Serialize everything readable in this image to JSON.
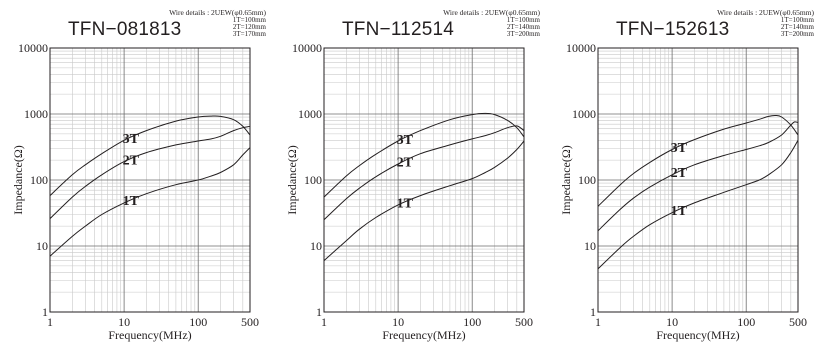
{
  "chart_data": [
    {
      "type": "line",
      "title": "TFN−081813",
      "wire_details": {
        "title": "Wire details : 2UEW(φ0.65mm)",
        "lengths": [
          "1T=100mm",
          "2T=120mm",
          "3T=170mm"
        ]
      },
      "xlabel": "Frequency(MHz)",
      "ylabel": "Impedance(Ω)",
      "x_scale": "log",
      "y_scale": "log",
      "xlim": [
        1,
        500
      ],
      "ylim": [
        1,
        10000
      ],
      "xticks": [
        "1",
        "10",
        "100",
        "500"
      ],
      "yticks": [
        "1",
        "10",
        "100",
        "1000",
        "10000"
      ],
      "grid": true,
      "series": [
        {
          "name": "3T",
          "x": [
            1,
            2,
            3,
            5,
            10,
            20,
            50,
            100,
            150,
            200,
            300,
            400,
            500
          ],
          "y": [
            58,
            120,
            170,
            250,
            400,
            560,
            780,
            900,
            930,
            920,
            820,
            650,
            480
          ]
        },
        {
          "name": "2T",
          "x": [
            1,
            2,
            3,
            5,
            10,
            20,
            50,
            100,
            150,
            200,
            300,
            400,
            500
          ],
          "y": [
            26,
            55,
            80,
            120,
            190,
            260,
            340,
            390,
            420,
            460,
            560,
            620,
            650
          ]
        },
        {
          "name": "1T",
          "x": [
            1,
            2,
            3,
            5,
            10,
            20,
            50,
            100,
            150,
            200,
            300,
            400,
            500
          ],
          "y": [
            7,
            14,
            20,
            30,
            45,
            62,
            85,
            100,
            115,
            130,
            170,
            240,
            310
          ]
        }
      ]
    },
    {
      "type": "line",
      "title": "TFN−112514",
      "wire_details": {
        "title": "Wire details : 2UEW(φ0.65mm)",
        "lengths": [
          "1T=100mm",
          "2T=140mm",
          "3T=200mm"
        ]
      },
      "xlabel": "Frequency(MHz)",
      "ylabel": "Impedance(Ω)",
      "x_scale": "log",
      "y_scale": "log",
      "xlim": [
        1,
        500
      ],
      "ylim": [
        1,
        10000
      ],
      "xticks": [
        "1",
        "10",
        "100",
        "500"
      ],
      "yticks": [
        "1",
        "10",
        "100",
        "1000",
        "10000"
      ],
      "grid": true,
      "series": [
        {
          "name": "3T",
          "x": [
            1,
            2,
            3,
            5,
            10,
            20,
            50,
            100,
            150,
            200,
            300,
            400,
            500
          ],
          "y": [
            55,
            115,
            165,
            245,
            390,
            560,
            820,
            980,
            1020,
            980,
            800,
            620,
            450
          ]
        },
        {
          "name": "2T",
          "x": [
            1,
            2,
            3,
            5,
            10,
            20,
            50,
            100,
            150,
            200,
            300,
            400,
            500
          ],
          "y": [
            25,
            52,
            75,
            112,
            175,
            250,
            340,
            420,
            470,
            520,
            620,
            660,
            560
          ]
        },
        {
          "name": "1T",
          "x": [
            1,
            2,
            3,
            5,
            10,
            20,
            50,
            100,
            150,
            200,
            300,
            400,
            500
          ],
          "y": [
            6,
            12,
            18,
            27,
            42,
            58,
            82,
            105,
            130,
            155,
            215,
            290,
            390
          ]
        }
      ]
    },
    {
      "type": "line",
      "title": "TFN−152613",
      "wire_details": {
        "title": "Wire details : 2UEW(φ0.65mm)",
        "lengths": [
          "1T=100mm",
          "2T=140mm",
          "3T=200mm"
        ]
      },
      "xlabel": "Frequency(MHz)",
      "ylabel": "Impedance(Ω)",
      "x_scale": "log",
      "y_scale": "log",
      "xlim": [
        1,
        500
      ],
      "ylim": [
        1,
        10000
      ],
      "xticks": [
        "1",
        "10",
        "100",
        "500"
      ],
      "yticks": [
        "1",
        "10",
        "100",
        "1000",
        "10000"
      ],
      "grid": true,
      "series": [
        {
          "name": "3T",
          "x": [
            1,
            2,
            3,
            5,
            10,
            20,
            50,
            100,
            150,
            200,
            250,
            300,
            400,
            500
          ],
          "y": [
            40,
            85,
            125,
            185,
            290,
            410,
            590,
            730,
            830,
            920,
            950,
            900,
            680,
            480
          ]
        },
        {
          "name": "2T",
          "x": [
            1,
            2,
            3,
            5,
            10,
            20,
            50,
            100,
            150,
            200,
            300,
            400,
            450,
            500
          ],
          "y": [
            17,
            36,
            53,
            78,
            120,
            170,
            235,
            290,
            330,
            370,
            480,
            680,
            760,
            740
          ]
        },
        {
          "name": "1T",
          "x": [
            1,
            2,
            3,
            5,
            10,
            20,
            50,
            100,
            150,
            200,
            300,
            400,
            500
          ],
          "y": [
            4.5,
            9.5,
            14,
            21,
            32,
            45,
            65,
            85,
            100,
            120,
            170,
            260,
            400
          ]
        }
      ]
    }
  ]
}
